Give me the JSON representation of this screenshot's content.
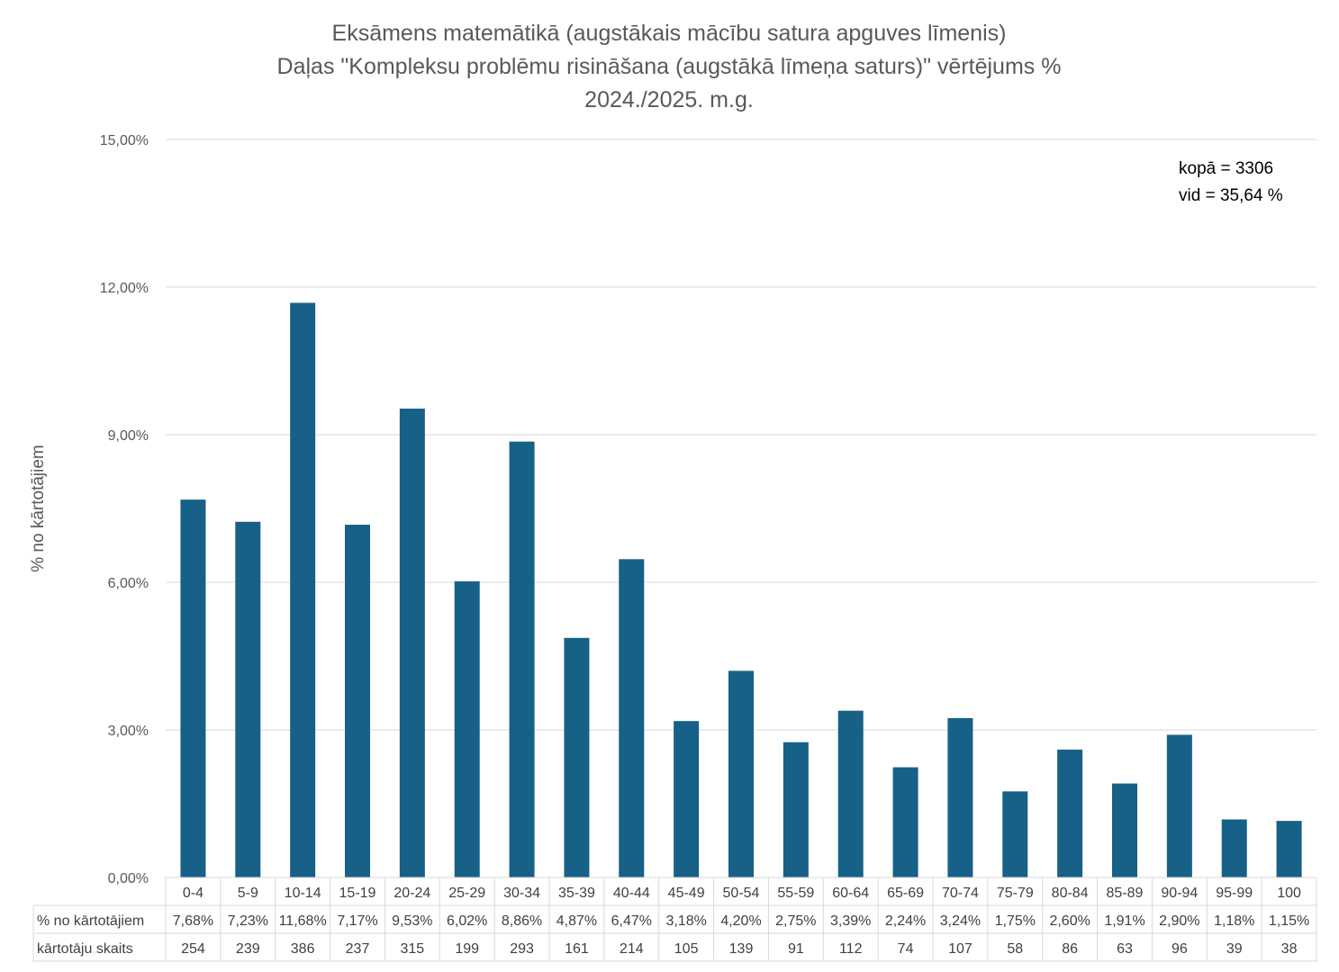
{
  "chart_data": {
    "type": "bar",
    "title": [
      "Eksāmens matemātikā (augstākais mācību satura apguves līmenis)",
      "Daļas \"Kompleksu problēmu risināšana (augstākā līmeņa saturs)\" vērtējums %",
      "2024./2025. m.g."
    ],
    "xlabel": "",
    "ylabel": "% no kārtotājiem",
    "ylim": [
      0,
      15
    ],
    "yticks": [
      0,
      3,
      6,
      9,
      12,
      15
    ],
    "ytick_labels": [
      "0,00%",
      "3,00%",
      "6,00%",
      "9,00%",
      "12,00%",
      "15,00%"
    ],
    "grid": true,
    "categories": [
      "0-4",
      "5-9",
      "10-14",
      "15-19",
      "20-24",
      "25-29",
      "30-34",
      "35-39",
      "40-44",
      "45-49",
      "50-54",
      "55-59",
      "60-64",
      "65-69",
      "70-74",
      "75-79",
      "80-84",
      "85-89",
      "90-94",
      "95-99",
      "100"
    ],
    "series": [
      {
        "name": "% no kārtotājiem",
        "values": [
          7.68,
          7.23,
          11.68,
          7.17,
          9.53,
          6.02,
          8.86,
          4.87,
          6.47,
          3.18,
          4.2,
          2.75,
          3.39,
          2.24,
          3.24,
          1.75,
          2.6,
          1.91,
          2.9,
          1.18,
          1.15
        ],
        "labels": [
          "7,68%",
          "7,23%",
          "11,68%",
          "7,17%",
          "9,53%",
          "6,02%",
          "8,86%",
          "4,87%",
          "6,47%",
          "3,18%",
          "4,20%",
          "2,75%",
          "3,39%",
          "2,24%",
          "3,24%",
          "1,75%",
          "2,60%",
          "1,91%",
          "2,90%",
          "1,18%",
          "1,15%"
        ]
      },
      {
        "name": "kārtotāju skaits",
        "values": [
          254,
          239,
          386,
          237,
          315,
          199,
          293,
          161,
          214,
          105,
          139,
          91,
          112,
          74,
          107,
          58,
          86,
          63,
          96,
          39,
          38
        ],
        "table_only": true
      }
    ],
    "annotations": [
      "kopā = 3306",
      "vid = 35,64 %"
    ],
    "bar_color": "#176087"
  }
}
